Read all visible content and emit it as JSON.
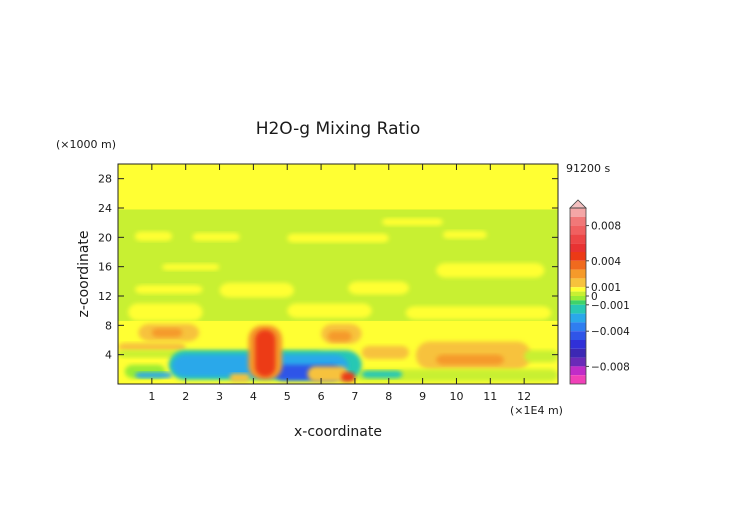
{
  "chart_data": {
    "type": "heatmap",
    "title": "H2O-g Mixing Ratio",
    "xlabel": "x-coordinate",
    "ylabel": "z-coordinate",
    "x_unit_label": "(×1E4 m)",
    "y_unit_label": "(×1000 m)",
    "time_label": "91200 s",
    "xlim": [
      0,
      13
    ],
    "ylim": [
      0,
      30
    ],
    "x_ticks": [
      "1",
      "2",
      "3",
      "4",
      "5",
      "6",
      "7",
      "8",
      "9",
      "10",
      "11",
      "12"
    ],
    "y_ticks": [
      "4",
      "8",
      "12",
      "16",
      "20",
      "24",
      "28"
    ],
    "colorbar": {
      "range": [
        -0.01,
        0.01
      ],
      "labels": [
        {
          "value": 0.008,
          "text": "0.008"
        },
        {
          "value": 0.004,
          "text": "0.004"
        },
        {
          "value": 0.001,
          "text": "0.001"
        },
        {
          "value": 0,
          "text": "0"
        },
        {
          "value": -0.001,
          "text": "−0.001"
        },
        {
          "value": -0.004,
          "text": "−0.004"
        },
        {
          "value": -0.008,
          "text": "−0.008"
        }
      ],
      "bands": [
        {
          "from": 0.009,
          "to": 0.01,
          "color": "#f4a6a6"
        },
        {
          "from": 0.008,
          "to": 0.009,
          "color": "#f17878"
        },
        {
          "from": 0.007,
          "to": 0.008,
          "color": "#f06060"
        },
        {
          "from": 0.006,
          "to": 0.007,
          "color": "#ec4646"
        },
        {
          "from": 0.005,
          "to": 0.006,
          "color": "#e83232"
        },
        {
          "from": 0.004,
          "to": 0.005,
          "color": "#ec3a16"
        },
        {
          "from": 0.003,
          "to": 0.004,
          "color": "#f06a1e"
        },
        {
          "from": 0.002,
          "to": 0.003,
          "color": "#f59a2a"
        },
        {
          "from": 0.001,
          "to": 0.002,
          "color": "#f7c23c"
        },
        {
          "from": 0.0005,
          "to": 0.001,
          "color": "#ffff33"
        },
        {
          "from": 0,
          "to": 0.0005,
          "color": "#c8f032"
        },
        {
          "from": -0.0005,
          "to": 0,
          "color": "#98ec36"
        },
        {
          "from": -0.001,
          "to": -0.0005,
          "color": "#3ed36a"
        },
        {
          "from": -0.002,
          "to": -0.001,
          "color": "#28c8b4"
        },
        {
          "from": -0.003,
          "to": -0.002,
          "color": "#2aa8ea"
        },
        {
          "from": -0.004,
          "to": -0.003,
          "color": "#2f7ef0"
        },
        {
          "from": -0.005,
          "to": -0.004,
          "color": "#2f55e8"
        },
        {
          "from": -0.006,
          "to": -0.005,
          "color": "#3030d8"
        },
        {
          "from": -0.007,
          "to": -0.006,
          "color": "#3c28b4"
        },
        {
          "from": -0.008,
          "to": -0.007,
          "color": "#6a2ab8"
        },
        {
          "from": -0.009,
          "to": -0.008,
          "color": "#c02cc8"
        },
        {
          "from": -0.01,
          "to": -0.009,
          "color": "#f040b8"
        }
      ]
    },
    "field_regions": [
      {
        "level": "positive-orange",
        "x": [
          3.9,
          4.8
        ],
        "z": [
          0.5,
          8.0
        ]
      },
      {
        "level": "positive-orange",
        "x": [
          0.6,
          2.4
        ],
        "z": [
          5.5,
          8.2
        ]
      },
      {
        "level": "positive-orange",
        "x": [
          6.0,
          7.2
        ],
        "z": [
          5.5,
          8.2
        ]
      },
      {
        "level": "positive-orange",
        "x": [
          8.8,
          12.0
        ],
        "z": [
          2.0,
          6.0
        ]
      },
      {
        "level": "negative-blue",
        "x": [
          1.5,
          7.2
        ],
        "z": [
          0.5,
          4.5
        ]
      },
      {
        "level": "green",
        "x": [
          0,
          13
        ],
        "z": [
          8,
          24
        ]
      }
    ]
  }
}
